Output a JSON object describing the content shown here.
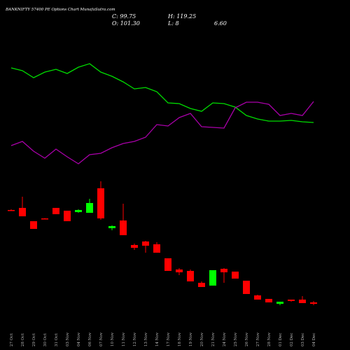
{
  "chart_data": {
    "type": "candlestick",
    "title": "BANKNIFTY 57400 PE Options Chart MunafaSutra.com",
    "header": {
      "close": "C: 99.75",
      "high": "H: 119.25",
      "open": "O: 101.30",
      "low": "L: 8",
      "extra": "6.60"
    },
    "categories": [
      "27 Oct",
      "28 Oct",
      "29 Oct",
      "30 Oct",
      "31 Oct",
      "03 Nov",
      "04 Nov",
      "06 Nov",
      "07 Nov",
      "10 Nov",
      "11 Nov",
      "12 Nov",
      "13 Nov",
      "14 Nov",
      "17 Nov",
      "18 Nov",
      "19 Nov",
      "20 Nov",
      "21 Nov",
      "24 Nov",
      "25 Nov",
      "26 Nov",
      "27 Nov",
      "28 Nov",
      "01 Dec",
      "02 Dec",
      "03 Dec",
      "04 Dec"
    ],
    "open": [
      150,
      153,
      134,
      138,
      153,
      149,
      147,
      146,
      181,
      124,
      135,
      100,
      105,
      101,
      81,
      65,
      63,
      46,
      42,
      66,
      62,
      49,
      28,
      23,
      16,
      22,
      22,
      18
    ],
    "high": [
      151,
      169,
      134,
      138.5,
      153,
      149,
      151,
      166,
      191,
      128,
      159,
      102,
      106,
      104,
      81,
      67,
      65,
      48,
      64,
      67,
      62,
      49,
      29,
      23,
      19,
      22,
      27,
      20
    ],
    "low": [
      149,
      141,
      123,
      137.5,
      144,
      134,
      146,
      146,
      136,
      121,
      114,
      93,
      89,
      89,
      63,
      57,
      48,
      40,
      42,
      46,
      52,
      30,
      22,
      18,
      14,
      19,
      17,
      14
    ],
    "close": [
      150,
      141,
      123,
      138,
      144,
      134,
      150,
      160,
      138,
      127,
      114,
      96,
      99,
      89,
      63,
      61,
      48,
      40,
      64,
      61,
      52,
      30,
      22,
      18,
      19,
      20,
      17,
      16
    ],
    "up_color": "#00ff00",
    "down_color": "#ff0000",
    "ylim": [
      0,
      200
    ],
    "lines": [
      {
        "color": "#00dd00",
        "values": [
          153,
          149,
          139,
          147,
          151,
          145,
          154,
          159,
          147,
          141,
          133,
          123,
          125,
          119,
          103,
          102,
          95,
          91,
          103,
          102,
          97,
          85,
          80,
          77,
          77,
          78,
          76,
          75
        ]
      },
      {
        "color": "#aa00aa",
        "values": [
          42,
          48,
          34,
          24,
          37,
          26,
          16,
          29,
          31,
          39,
          45,
          48,
          54,
          72,
          70,
          82,
          88,
          69,
          68,
          67,
          96,
          104,
          104,
          101,
          85,
          88,
          85,
          105
        ]
      }
    ],
    "y2lim": [
      0,
      200
    ]
  }
}
